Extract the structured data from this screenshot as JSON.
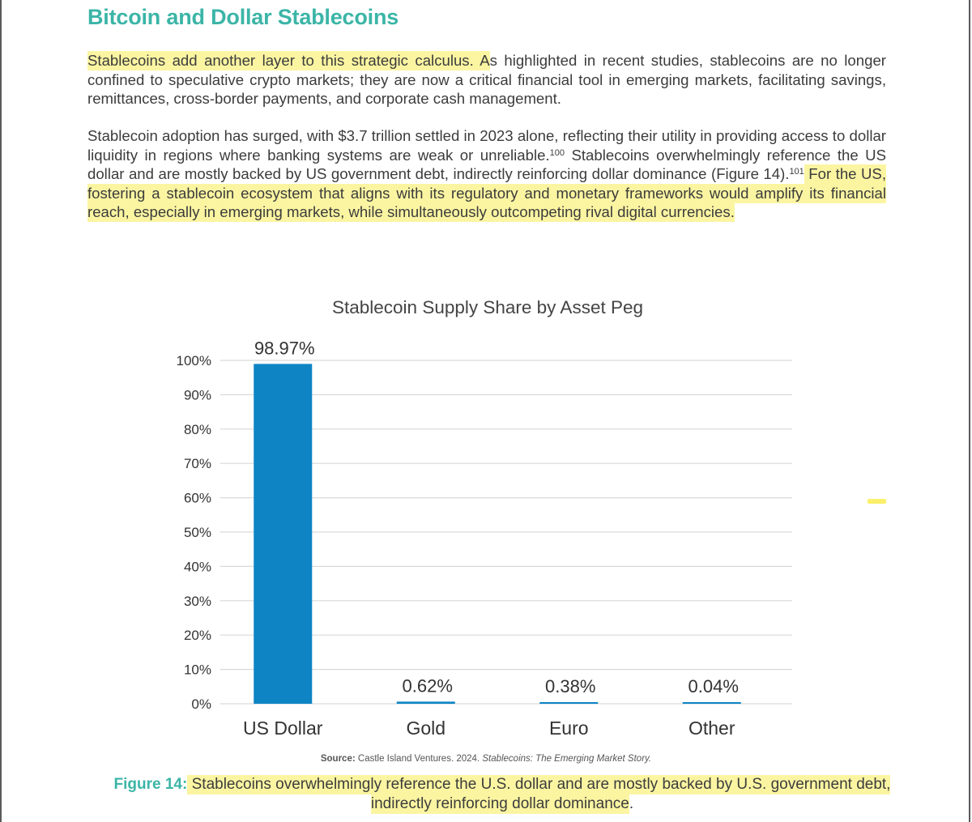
{
  "document": {
    "heading": "Bitcoin and Dollar Stablecoins",
    "p1": {
      "highlight": "Stablecoins add another layer to this strategic calculus. A",
      "rest": "s highlighted in recent studies, stablecoins are no longer confined to speculative crypto markets; they are now a critical financial tool in emerging markets, facilitating savings, remittances, cross-border payments, and corporate cash management."
    },
    "p2": {
      "text_a": "Stablecoin adoption has surged, with $3.7 trillion settled in 2023 alone, reflecting their utility in providing access to dollar liquidity in regions where banking systems are weak or unreliable.",
      "ref_a": "100",
      "text_b": " Stablecoins overwhelmingly reference the US dollar and are mostly backed by US government debt, indirectly reinforcing dollar dominance (Figure 14).",
      "ref_b": "101",
      "highlight": " For the US, fostering a stablecoin ecosystem that aligns with its regulatory and monetary frameworks would amplify its financial reach, especially in emerging markets, while simultaneously outcompeting rival digital currencies."
    },
    "source": {
      "label": "Source:",
      "text": " Castle Island Ventures. 2024. ",
      "title": "Stablecoins: The Emerging Market Story."
    },
    "caption": {
      "label": "Figure 14:",
      "highlight_a": " Stablecoins overwhelmingly reference the U.S. dollar and are mostly backed by U.S. government debt, indirectly reinforcing dollar dominance",
      "tail": "."
    }
  },
  "colors": {
    "heading": "#3bb5a7",
    "bar": "#0e84c4",
    "highlight": "#fbf5a2",
    "gridline": "#d9d9d9"
  },
  "chart_data": {
    "type": "bar",
    "title": "Stablecoin Supply Share by Asset Peg",
    "categories": [
      "US Dollar",
      "Gold",
      "Euro",
      "Other"
    ],
    "values": [
      98.97,
      0.62,
      0.38,
      0.04
    ],
    "value_labels": [
      "98.97%",
      "0.62%",
      "0.38%",
      "0.04%"
    ],
    "ylim": [
      0,
      100
    ],
    "yticks": [
      0,
      10,
      20,
      30,
      40,
      50,
      60,
      70,
      80,
      90,
      100
    ],
    "ytick_labels": [
      "0%",
      "10%",
      "20%",
      "30%",
      "40%",
      "50%",
      "60%",
      "70%",
      "80%",
      "90%",
      "100%"
    ],
    "grid": true,
    "legend": "none"
  }
}
